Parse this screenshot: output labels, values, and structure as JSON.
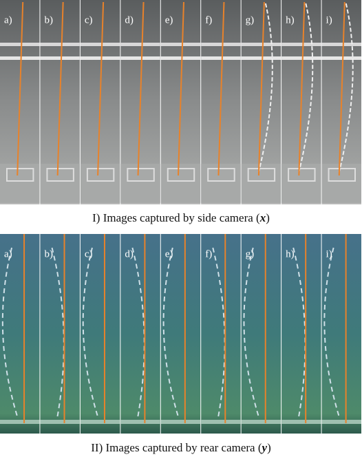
{
  "panels": [
    {
      "labels": [
        "a)",
        "b)",
        "c)",
        "d)",
        "e)",
        "f)",
        "g)",
        "h)",
        "i)"
      ],
      "caption": {
        "text": "I) Images captured by side camera (",
        "variable": "x",
        "close": ")"
      }
    },
    {
      "labels": [
        "a)",
        "b)",
        "c)",
        "d)",
        "e)",
        "f)",
        "g)",
        "h)",
        "i)"
      ],
      "caption": {
        "text": "II) Images captured by rear camera (",
        "variable": "y",
        "close": ")"
      }
    }
  ]
}
